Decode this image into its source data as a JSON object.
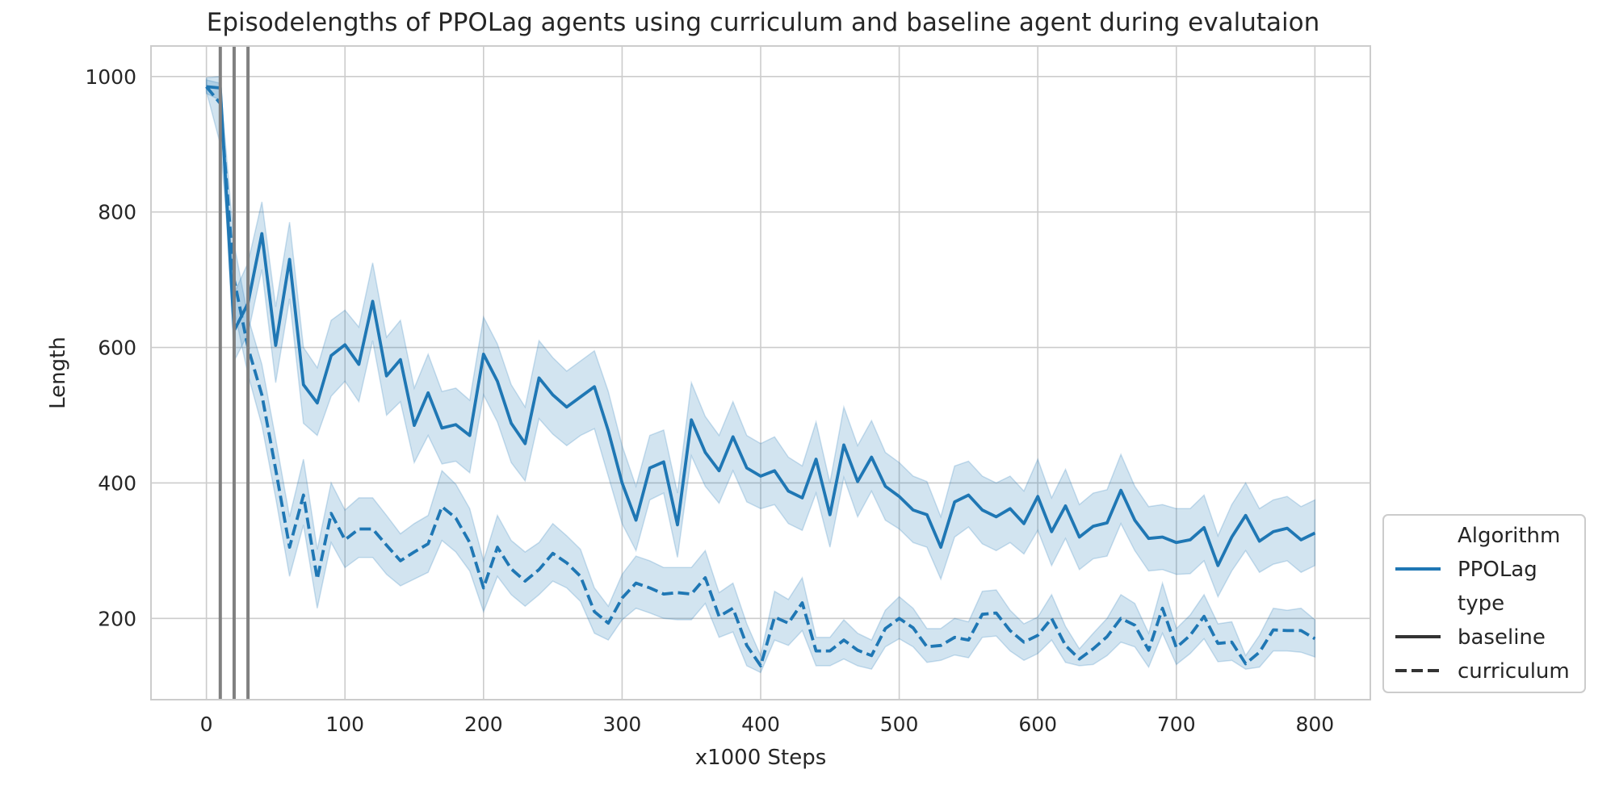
{
  "chart_data": {
    "type": "line",
    "title": "Episodelengths of PPOLag agents using curriculum and baseline agent during evalutaion",
    "xlabel": "x1000 Steps",
    "ylabel": "Length",
    "xlim": [
      -40,
      840
    ],
    "ylim": [
      80,
      1045
    ],
    "xticks": [
      0,
      100,
      200,
      300,
      400,
      500,
      600,
      700,
      800
    ],
    "yticks": [
      200,
      400,
      600,
      800,
      1000
    ],
    "grid": true,
    "vertical_lines": [
      10,
      20,
      30
    ],
    "series_color": "#1f77b4",
    "band_color": "#1f77b4",
    "vline_color": "#808080",
    "legend": {
      "placement": "lower-right, outside plot",
      "entries": [
        {
          "label": "Algorithm",
          "style": "header"
        },
        {
          "label": "PPOLag",
          "style": "color"
        },
        {
          "label": "type",
          "style": "header"
        },
        {
          "label": "baseline",
          "style": "solid"
        },
        {
          "label": "curriculum",
          "style": "dashed"
        }
      ]
    },
    "x": [
      0,
      10,
      20,
      30,
      40,
      50,
      60,
      70,
      80,
      90,
      100,
      110,
      120,
      130,
      140,
      150,
      160,
      170,
      180,
      190,
      200,
      210,
      220,
      230,
      240,
      250,
      260,
      270,
      280,
      290,
      300,
      310,
      320,
      330,
      340,
      350,
      360,
      370,
      380,
      390,
      400,
      410,
      420,
      430,
      440,
      450,
      460,
      470,
      480,
      490,
      500,
      510,
      520,
      530,
      540,
      550,
      560,
      570,
      580,
      590,
      600,
      610,
      620,
      630,
      640,
      650,
      660,
      670,
      680,
      690,
      700,
      710,
      720,
      730,
      740,
      750,
      760,
      770,
      780,
      790,
      800
    ],
    "series": [
      {
        "name": "baseline",
        "style": "solid",
        "values": [
          985,
          983,
          625,
          665,
          768,
          603,
          730,
          545,
          518,
          588,
          604,
          575,
          668,
          558,
          582,
          485,
          533,
          481,
          486,
          470,
          590,
          550,
          488,
          458,
          555,
          530,
          512,
          527,
          542,
          477,
          400,
          345,
          422,
          431,
          338,
          493,
          445,
          418,
          468,
          422,
          410,
          418,
          388,
          378,
          435,
          353,
          456,
          402,
          438,
          395,
          380,
          360,
          353,
          305,
          372,
          382,
          360,
          350,
          362,
          340,
          380,
          328,
          366,
          320,
          336,
          341,
          389,
          345,
          318,
          320,
          312,
          316,
          334,
          278,
          320,
          352,
          314,
          328,
          333,
          316,
          326
        ],
        "lower": [
          975,
          965,
          580,
          620,
          715,
          548,
          672,
          488,
          470,
          528,
          550,
          520,
          610,
          500,
          520,
          430,
          470,
          428,
          432,
          415,
          530,
          490,
          430,
          403,
          495,
          472,
          455,
          470,
          480,
          410,
          340,
          300,
          375,
          385,
          290,
          440,
          395,
          370,
          418,
          372,
          362,
          368,
          340,
          330,
          385,
          305,
          408,
          350,
          388,
          345,
          332,
          312,
          305,
          258,
          320,
          335,
          310,
          300,
          312,
          295,
          330,
          278,
          318,
          272,
          288,
          292,
          340,
          300,
          270,
          272,
          265,
          266,
          285,
          232,
          270,
          300,
          268,
          280,
          285,
          268,
          278
        ],
        "upper": [
          998,
          1000,
          680,
          725,
          815,
          660,
          785,
          600,
          570,
          640,
          655,
          630,
          725,
          615,
          640,
          540,
          590,
          535,
          540,
          522,
          645,
          605,
          545,
          512,
          610,
          585,
          565,
          580,
          595,
          535,
          455,
          395,
          470,
          478,
          385,
          548,
          498,
          470,
          520,
          470,
          458,
          468,
          438,
          425,
          490,
          400,
          512,
          455,
          492,
          445,
          430,
          410,
          402,
          350,
          425,
          432,
          410,
          400,
          410,
          388,
          435,
          378,
          420,
          368,
          385,
          390,
          442,
          395,
          365,
          368,
          362,
          362,
          382,
          322,
          368,
          400,
          362,
          375,
          380,
          365,
          375
        ]
      },
      {
        "name": "curriculum",
        "style": "dashed",
        "values": [
          985,
          960,
          700,
          600,
          530,
          420,
          305,
          382,
          258,
          355,
          316,
          332,
          332,
          308,
          285,
          298,
          310,
          365,
          348,
          312,
          245,
          305,
          273,
          255,
          272,
          296,
          282,
          262,
          210,
          193,
          230,
          252,
          245,
          236,
          238,
          236,
          260,
          203,
          215,
          160,
          130,
          202,
          193,
          223,
          152,
          152,
          168,
          153,
          145,
          185,
          200,
          186,
          158,
          160,
          172,
          168,
          206,
          208,
          182,
          165,
          175,
          200,
          160,
          140,
          155,
          173,
          200,
          190,
          153,
          215,
          157,
          175,
          203,
          163,
          165,
          133,
          150,
          183,
          182,
          182,
          170
        ],
        "lower": [
          978,
          900,
          655,
          560,
          485,
          378,
          262,
          338,
          215,
          312,
          275,
          290,
          290,
          265,
          248,
          258,
          268,
          315,
          298,
          270,
          210,
          262,
          235,
          218,
          235,
          255,
          245,
          225,
          178,
          168,
          198,
          215,
          208,
          200,
          198,
          198,
          222,
          172,
          180,
          130,
          120,
          168,
          160,
          182,
          130,
          130,
          140,
          130,
          125,
          158,
          170,
          158,
          135,
          138,
          146,
          142,
          172,
          174,
          152,
          138,
          148,
          168,
          135,
          130,
          132,
          145,
          165,
          158,
          128,
          178,
          132,
          148,
          170,
          136,
          138,
          125,
          128,
          152,
          152,
          150,
          143
        ],
        "upper": [
          995,
          990,
          752,
          645,
          575,
          465,
          350,
          435,
          302,
          400,
          360,
          378,
          378,
          352,
          325,
          340,
          352,
          418,
          398,
          362,
          285,
          352,
          315,
          298,
          312,
          340,
          322,
          302,
          245,
          218,
          265,
          292,
          285,
          275,
          275,
          275,
          300,
          238,
          252,
          192,
          145,
          240,
          228,
          260,
          172,
          172,
          198,
          178,
          168,
          212,
          232,
          215,
          185,
          185,
          200,
          195,
          240,
          242,
          212,
          192,
          202,
          235,
          188,
          155,
          178,
          200,
          235,
          222,
          178,
          252,
          185,
          205,
          235,
          192,
          195,
          145,
          175,
          215,
          212,
          215,
          198
        ]
      }
    ]
  }
}
